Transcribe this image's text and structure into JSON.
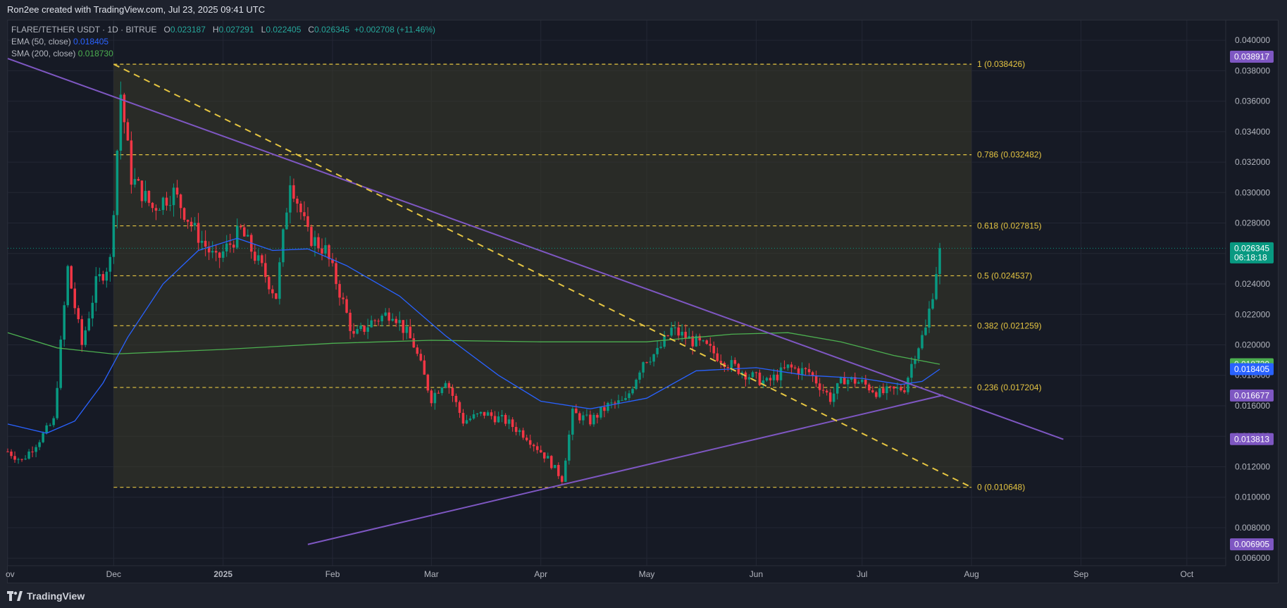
{
  "header": {
    "attribution": "Ron2ee created with TradingView.com, Jul 23, 2025 09:41 UTC"
  },
  "legend": {
    "symbol": "FLARE/TETHER USDT · 1D · BITRUE",
    "open_label": "O",
    "open": "0.023187",
    "high_label": "H",
    "high": "0.027291",
    "low_label": "L",
    "low": "0.022405",
    "close_label": "C",
    "close": "0.026345",
    "change": "+0.002708 (+11.46%)",
    "ema_label": "EMA (50, close)",
    "ema_value": "0.018405",
    "sma_label": "SMA (200, close)",
    "sma_value": "0.018730"
  },
  "branding": {
    "name": "TradingView"
  },
  "chart_data": {
    "type": "candlestick",
    "y_axis": {
      "ticks": [
        "0.040000",
        "0.038000",
        "0.036000",
        "0.034000",
        "0.032000",
        "0.030000",
        "0.028000",
        "0.026000",
        "0.024000",
        "0.022000",
        "0.020000",
        "0.018000",
        "0.016000",
        "0.014000",
        "0.012000",
        "0.010000",
        "0.008000",
        "0.006000"
      ],
      "ylim": [
        0.0055,
        0.0413
      ]
    },
    "x_axis": {
      "ticks": [
        "ov",
        "Dec",
        "2025",
        "Feb",
        "Mar",
        "Apr",
        "May",
        "Jun",
        "Jul",
        "Aug",
        "Sep",
        "Oct"
      ],
      "xlim": [
        "2024-11-01",
        "2025-10-12"
      ]
    },
    "fibonacci": [
      {
        "label": "1 (0.038426)",
        "value": 0.038426
      },
      {
        "label": "0.786 (0.032482)",
        "value": 0.032482
      },
      {
        "label": "0.618 (0.027815)",
        "value": 0.027815
      },
      {
        "label": "0.5 (0.024537)",
        "value": 0.024537
      },
      {
        "label": "0.382 (0.021259)",
        "value": 0.021259
      },
      {
        "label": "0.236 (0.017204)",
        "value": 0.017204
      },
      {
        "label": "0 (0.010648)",
        "value": 0.010648
      }
    ],
    "fib_range": {
      "start": "2024-12-01",
      "end": "2025-08-01"
    },
    "trendlines": [
      {
        "kind": "descending-resistance",
        "from": [
          "2024-11-01",
          0.0388
        ],
        "to": [
          "2025-08-27",
          0.0138
        ]
      },
      {
        "kind": "ascending-support",
        "from": [
          "2025-01-25",
          0.0069
        ],
        "to": [
          "2025-07-24",
          0.0167
        ]
      },
      {
        "kind": "dashed-fib-diagonal",
        "from": [
          "2024-12-01",
          0.038426
        ],
        "to": [
          "2025-08-01",
          0.010648
        ]
      }
    ],
    "price_labels": [
      {
        "value": "0.038917",
        "y": 0.038917,
        "color": "#7e57c2"
      },
      {
        "value": "0.026345",
        "y": 0.026345,
        "color": "#089981",
        "sub": "06:18:18"
      },
      {
        "value": "0.018730",
        "y": 0.01873,
        "color": "#4caf50"
      },
      {
        "value": "0.018405",
        "y": 0.018405,
        "color": "#2962ff"
      },
      {
        "value": "0.016677",
        "y": 0.016677,
        "color": "#7e57c2"
      },
      {
        "value": "0.013813",
        "y": 0.013813,
        "color": "#7e57c2"
      },
      {
        "value": "0.006905",
        "y": 0.006905,
        "color": "#7e57c2"
      }
    ],
    "last_price": 0.026345,
    "anchors": [
      [
        "2024-11-01",
        0.013
      ],
      [
        "2024-11-05",
        0.0124
      ],
      [
        "2024-11-10",
        0.0138
      ],
      [
        "2024-11-14",
        0.015
      ],
      [
        "2024-11-18",
        0.025
      ],
      [
        "2024-11-22",
        0.02
      ],
      [
        "2024-11-26",
        0.024
      ],
      [
        "2024-11-30",
        0.0255
      ],
      [
        "2024-12-03",
        0.0365
      ],
      [
        "2024-12-06",
        0.031
      ],
      [
        "2024-12-12",
        0.029
      ],
      [
        "2024-12-18",
        0.03
      ],
      [
        "2024-12-24",
        0.0275
      ],
      [
        "2024-12-30",
        0.0255
      ],
      [
        "2025-01-06",
        0.0275
      ],
      [
        "2025-01-12",
        0.025
      ],
      [
        "2025-01-16",
        0.0232
      ],
      [
        "2025-01-20",
        0.031
      ],
      [
        "2025-01-25",
        0.0272
      ],
      [
        "2025-01-30",
        0.0262
      ],
      [
        "2025-02-03",
        0.0235
      ],
      [
        "2025-02-07",
        0.0205
      ],
      [
        "2025-02-12",
        0.0215
      ],
      [
        "2025-02-18",
        0.0222
      ],
      [
        "2025-02-24",
        0.02
      ],
      [
        "2025-03-01",
        0.0165
      ],
      [
        "2025-03-05",
        0.0178
      ],
      [
        "2025-03-10",
        0.015
      ],
      [
        "2025-03-16",
        0.0155
      ],
      [
        "2025-03-22",
        0.015
      ],
      [
        "2025-03-28",
        0.014
      ],
      [
        "2025-04-03",
        0.0125
      ],
      [
        "2025-04-07",
        0.0112
      ],
      [
        "2025-04-10",
        0.0155
      ],
      [
        "2025-04-15",
        0.015
      ],
      [
        "2025-04-20",
        0.016
      ],
      [
        "2025-04-25",
        0.0163
      ],
      [
        "2025-04-30",
        0.019
      ],
      [
        "2025-05-04",
        0.0195
      ],
      [
        "2025-05-08",
        0.021
      ],
      [
        "2025-05-12",
        0.0205
      ],
      [
        "2025-05-18",
        0.0198
      ],
      [
        "2025-05-24",
        0.0188
      ],
      [
        "2025-05-30",
        0.018
      ],
      [
        "2025-06-04",
        0.0175
      ],
      [
        "2025-06-10",
        0.0185
      ],
      [
        "2025-06-16",
        0.0182
      ],
      [
        "2025-06-22",
        0.0165
      ],
      [
        "2025-06-26",
        0.0178
      ],
      [
        "2025-07-01",
        0.0175
      ],
      [
        "2025-07-06",
        0.0168
      ],
      [
        "2025-07-10",
        0.017
      ],
      [
        "2025-07-13",
        0.0172
      ],
      [
        "2025-07-16",
        0.0195
      ],
      [
        "2025-07-19",
        0.021
      ],
      [
        "2025-07-21",
        0.0235
      ],
      [
        "2025-07-23",
        0.026345
      ]
    ],
    "ema": [
      [
        "2024-11-01",
        0.0148
      ],
      [
        "2024-11-12",
        0.0142
      ],
      [
        "2024-11-20",
        0.015
      ],
      [
        "2024-11-28",
        0.0175
      ],
      [
        "2024-12-05",
        0.0205
      ],
      [
        "2024-12-15",
        0.024
      ],
      [
        "2024-12-25",
        0.0262
      ],
      [
        "2025-01-05",
        0.027
      ],
      [
        "2025-01-15",
        0.0262
      ],
      [
        "2025-01-25",
        0.0263
      ],
      [
        "2025-02-05",
        0.0252
      ],
      [
        "2025-02-20",
        0.0232
      ],
      [
        "2025-03-05",
        0.0206
      ],
      [
        "2025-03-20",
        0.018
      ],
      [
        "2025-04-01",
        0.0163
      ],
      [
        "2025-04-15",
        0.0158
      ],
      [
        "2025-05-01",
        0.0165
      ],
      [
        "2025-05-15",
        0.0183
      ],
      [
        "2025-06-01",
        0.0185
      ],
      [
        "2025-06-15",
        0.018
      ],
      [
        "2025-07-01",
        0.0178
      ],
      [
        "2025-07-12",
        0.0174
      ],
      [
        "2025-07-18",
        0.0176
      ],
      [
        "2025-07-23",
        0.018405
      ]
    ],
    "sma": [
      [
        "2024-11-01",
        0.0208
      ],
      [
        "2024-11-15",
        0.0198
      ],
      [
        "2024-12-01",
        0.0194
      ],
      [
        "2025-01-01",
        0.0197
      ],
      [
        "2025-02-01",
        0.0201
      ],
      [
        "2025-03-01",
        0.0203
      ],
      [
        "2025-04-01",
        0.0202
      ],
      [
        "2025-05-01",
        0.0202
      ],
      [
        "2025-05-25",
        0.0207
      ],
      [
        "2025-06-10",
        0.0208
      ],
      [
        "2025-06-25",
        0.0202
      ],
      [
        "2025-07-10",
        0.0193
      ],
      [
        "2025-07-23",
        0.01873
      ]
    ]
  },
  "colors": {
    "up": "#089981",
    "down": "#f23645",
    "resistance": "#7e57c2",
    "fib": "#e5c542",
    "ema": "#2962ff",
    "sma": "#4caf50",
    "fib_fill": "#3a3a2a"
  }
}
